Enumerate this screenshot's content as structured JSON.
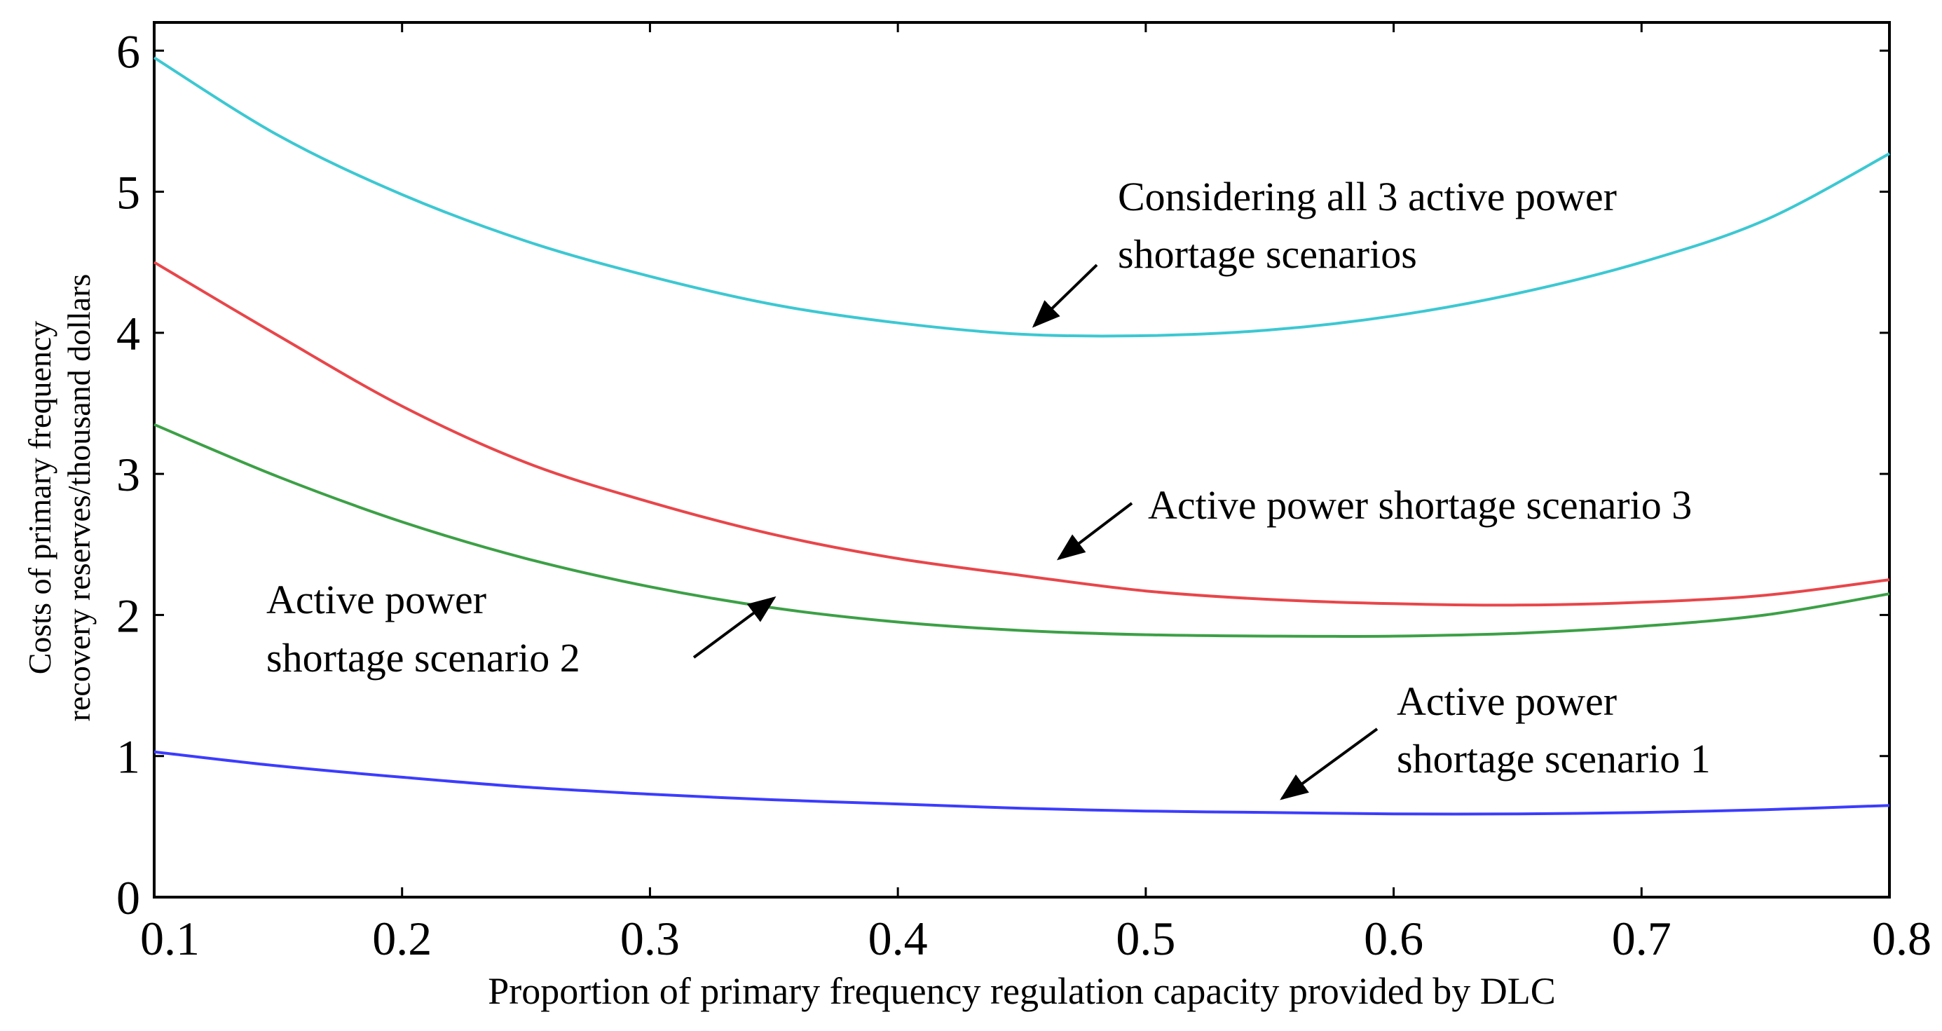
{
  "chart_data": {
    "type": "line",
    "title": "",
    "xlabel": "Proportion of primary frequency regulation capacity provided by DLC",
    "ylabel_lines": [
      "Costs of primary frequency",
      "recovery reserves/thousand dollars"
    ],
    "xlim": [
      0.1,
      0.8
    ],
    "ylim": [
      0,
      6.2
    ],
    "xticks": [
      "0.1",
      "0.2",
      "0.3",
      "0.4",
      "0.5",
      "0.6",
      "0.7",
      "0.8"
    ],
    "yticks": [
      "0",
      "1",
      "2",
      "3",
      "4",
      "5",
      "6"
    ],
    "grid": false,
    "series": [
      {
        "name": "Considering all 3 active power shortage scenarios",
        "color": "#3cc8d2",
        "x": [
          0.1,
          0.15,
          0.2,
          0.25,
          0.3,
          0.35,
          0.4,
          0.45,
          0.5,
          0.55,
          0.6,
          0.65,
          0.7,
          0.75,
          0.8
        ],
        "y": [
          5.95,
          5.4,
          4.98,
          4.65,
          4.4,
          4.2,
          4.07,
          3.99,
          3.98,
          4.02,
          4.12,
          4.28,
          4.5,
          4.8,
          5.27
        ]
      },
      {
        "name": "Active power shortage scenario 3",
        "color": "#e8464a",
        "x": [
          0.1,
          0.15,
          0.2,
          0.25,
          0.3,
          0.35,
          0.4,
          0.45,
          0.5,
          0.55,
          0.6,
          0.65,
          0.7,
          0.75,
          0.8
        ],
        "y": [
          4.5,
          3.98,
          3.48,
          3.08,
          2.8,
          2.57,
          2.4,
          2.28,
          2.17,
          2.11,
          2.08,
          2.07,
          2.09,
          2.14,
          2.25
        ]
      },
      {
        "name": "Active power shortage scenario 2",
        "color": "#3ca046",
        "x": [
          0.1,
          0.15,
          0.2,
          0.25,
          0.3,
          0.35,
          0.4,
          0.45,
          0.5,
          0.55,
          0.6,
          0.65,
          0.7,
          0.75,
          0.8
        ],
        "y": [
          3.35,
          2.98,
          2.66,
          2.4,
          2.2,
          2.05,
          1.95,
          1.89,
          1.86,
          1.85,
          1.85,
          1.87,
          1.92,
          2.0,
          2.15
        ]
      },
      {
        "name": "Active power shortage scenario 1",
        "color": "#3c3cff",
        "x": [
          0.1,
          0.15,
          0.2,
          0.25,
          0.3,
          0.35,
          0.4,
          0.45,
          0.5,
          0.55,
          0.6,
          0.65,
          0.7,
          0.75,
          0.8
        ],
        "y": [
          1.03,
          0.93,
          0.85,
          0.78,
          0.73,
          0.69,
          0.66,
          0.63,
          0.61,
          0.6,
          0.59,
          0.59,
          0.6,
          0.62,
          0.65
        ]
      }
    ],
    "annotations": [
      {
        "lines": [
          "Considering all 3 active power",
          "shortage scenarios"
        ],
        "arrow_to": [
          0.455,
          4.05
        ]
      },
      {
        "lines": [
          "Active power shortage scenario 3"
        ],
        "arrow_to": [
          0.465,
          2.4
        ]
      },
      {
        "lines": [
          "Active power",
          "shortage scenario 2"
        ],
        "arrow_to": [
          0.35,
          2.12
        ]
      },
      {
        "lines": [
          "Active power",
          "shortage scenario 1"
        ],
        "arrow_to": [
          0.555,
          0.7
        ]
      }
    ]
  }
}
